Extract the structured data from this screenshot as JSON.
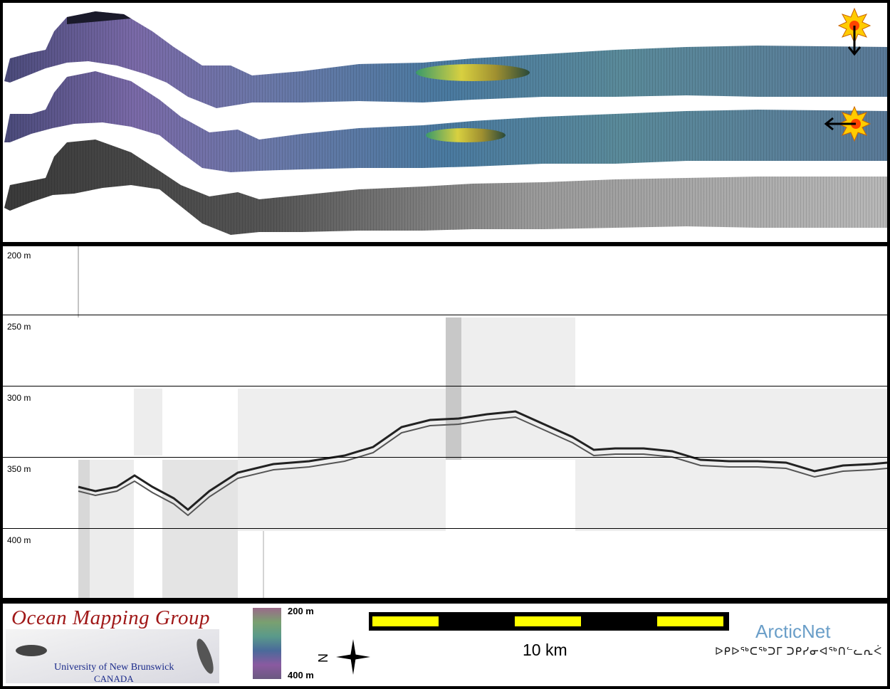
{
  "profile": {
    "depth_labels": [
      "200 m",
      "250 m",
      "300 m",
      "350 m",
      "400 m"
    ]
  },
  "legend": {
    "organization": "Ocean Mapping Group",
    "university": "University of New Brunswick",
    "country": "CANADA",
    "colorbar_top": "200 m",
    "colorbar_bottom": "400 m",
    "north_label": "N",
    "scale_label": "10 km",
    "partner": "ArcticNet",
    "partner_syllabics": "ᐅᑭᐅᖅᑕᖅᑐᒥ ᑐᑭᓯᓂᐊᖅᑎᓪᓚᕆᐹ"
  },
  "colors": {
    "org_title": "#a01818",
    "org_sub": "#1a2a8a",
    "scale_yellow": "#ffff00",
    "partner": "#6a9ec8"
  }
}
